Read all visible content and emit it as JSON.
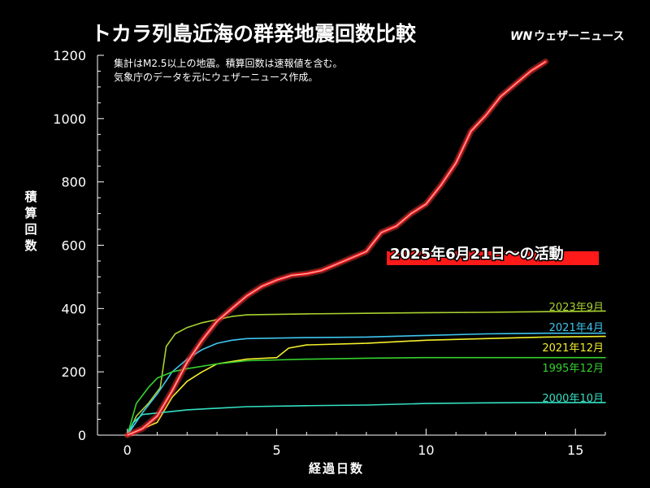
{
  "header": {
    "title": "トカラ列島近海の群発地震回数比較",
    "brand_logo": "WN",
    "brand_name": "ウェザーニュース"
  },
  "notes": {
    "line1": "集計はM2.5以上の地震。積算回数は速報値を含む。",
    "line2": "気象庁のデータを元にウェザーニュース作成。"
  },
  "chart_data": {
    "type": "line",
    "title": "トカラ列島近海の群発地震回数比較",
    "xlabel": "経過日数",
    "ylabel": "積算回数",
    "xlim": [
      -1,
      16
    ],
    "ylim": [
      0,
      1200
    ],
    "xticks": [
      0,
      5,
      10,
      15
    ],
    "yticks": [
      0,
      200,
      400,
      600,
      800,
      1000,
      1200
    ],
    "grid": false,
    "callout": "2025年6月21日〜の活動",
    "series": [
      {
        "name": "2023年9月",
        "color": "#a8d130",
        "x": [
          0,
          0.3,
          0.7,
          1.1,
          1.3,
          1.6,
          2.0,
          2.5,
          3.0,
          3.5,
          4.0,
          6.0,
          8.0,
          10.0,
          12.0,
          14.0,
          16.0
        ],
        "values": [
          0,
          60,
          100,
          150,
          280,
          320,
          340,
          355,
          365,
          375,
          380,
          383,
          385,
          387,
          388,
          390,
          392
        ]
      },
      {
        "name": "2021年4月",
        "color": "#3ec6ef",
        "x": [
          0,
          0.5,
          1.0,
          1.5,
          2.0,
          2.5,
          3.0,
          3.5,
          4.0,
          6.0,
          8.0,
          10.0,
          12.0,
          14.0,
          16.0
        ],
        "values": [
          0,
          70,
          130,
          200,
          240,
          270,
          290,
          300,
          305,
          308,
          310,
          315,
          320,
          322,
          322
        ]
      },
      {
        "name": "2021年12月",
        "color": "#f4ef2a",
        "x": [
          0,
          1.0,
          1.5,
          2.0,
          2.5,
          3.0,
          4.0,
          5.0,
          5.4,
          6.0,
          8.0,
          10.0,
          12.0,
          14.0,
          16.0
        ],
        "values": [
          0,
          40,
          120,
          170,
          200,
          225,
          240,
          245,
          275,
          285,
          290,
          300,
          305,
          310,
          312
        ]
      },
      {
        "name": "1995年12月",
        "color": "#35d12e",
        "x": [
          0,
          0.3,
          0.7,
          1.0,
          1.5,
          2.0,
          3.0,
          4.0,
          6.0,
          8.0,
          10.0,
          12.0,
          14.0,
          16.0
        ],
        "values": [
          0,
          100,
          150,
          180,
          200,
          210,
          225,
          235,
          240,
          243,
          245,
          245,
          245,
          245
        ]
      },
      {
        "name": "2000年10月",
        "color": "#33e0c3",
        "x": [
          0,
          0.2,
          0.5,
          1.0,
          2.0,
          3.0,
          4.0,
          6.0,
          8.0,
          10.0,
          12.0,
          14.0,
          16.0
        ],
        "values": [
          0,
          40,
          65,
          70,
          80,
          85,
          90,
          93,
          95,
          100,
          102,
          103,
          103
        ]
      },
      {
        "name": "2025年6月21日〜",
        "color": "#ff1a1a",
        "x": [
          0,
          0.5,
          1.0,
          1.5,
          2.0,
          2.5,
          3.0,
          3.5,
          4.0,
          4.5,
          5.0,
          5.5,
          6.0,
          6.5,
          7.0,
          7.5,
          8.0,
          8.5,
          9.0,
          9.5,
          10.0,
          10.5,
          11.0,
          11.5,
          12.0,
          12.5,
          13.0,
          13.5,
          14.0
        ],
        "values": [
          0,
          20,
          60,
          140,
          230,
          300,
          360,
          400,
          440,
          470,
          490,
          505,
          510,
          520,
          540,
          560,
          580,
          640,
          660,
          700,
          730,
          790,
          860,
          960,
          1010,
          1070,
          1110,
          1150,
          1180
        ]
      }
    ]
  }
}
